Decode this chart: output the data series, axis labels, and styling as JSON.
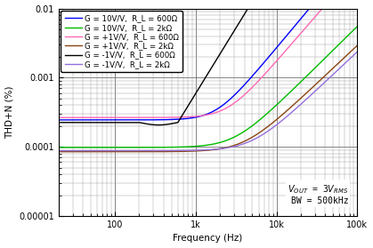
{
  "xlabel": "Frequency (Hz)",
  "ylabel": "THD+N (%)",
  "xlim": [
    20,
    100000
  ],
  "ylim": [
    1e-05,
    0.01
  ],
  "legend_entries": [
    "G = 10V/V,  R_L = 600Ω",
    "G = 10V/V,  R_L = 2kΩ",
    "G = +1V/V,  R_L = 600Ω",
    "G = +1V/V,  R_L = 2kΩ",
    "G = -1V/V,  R_L = 600Ω",
    "G = -1V/V,  R_L = 2kΩ"
  ],
  "colors": [
    "#0000ff",
    "#00bb00",
    "#ff69b4",
    "#8B4513",
    "#000000",
    "#9370DB"
  ],
  "linewidths": [
    1.0,
    1.0,
    1.0,
    1.0,
    1.0,
    1.0
  ]
}
